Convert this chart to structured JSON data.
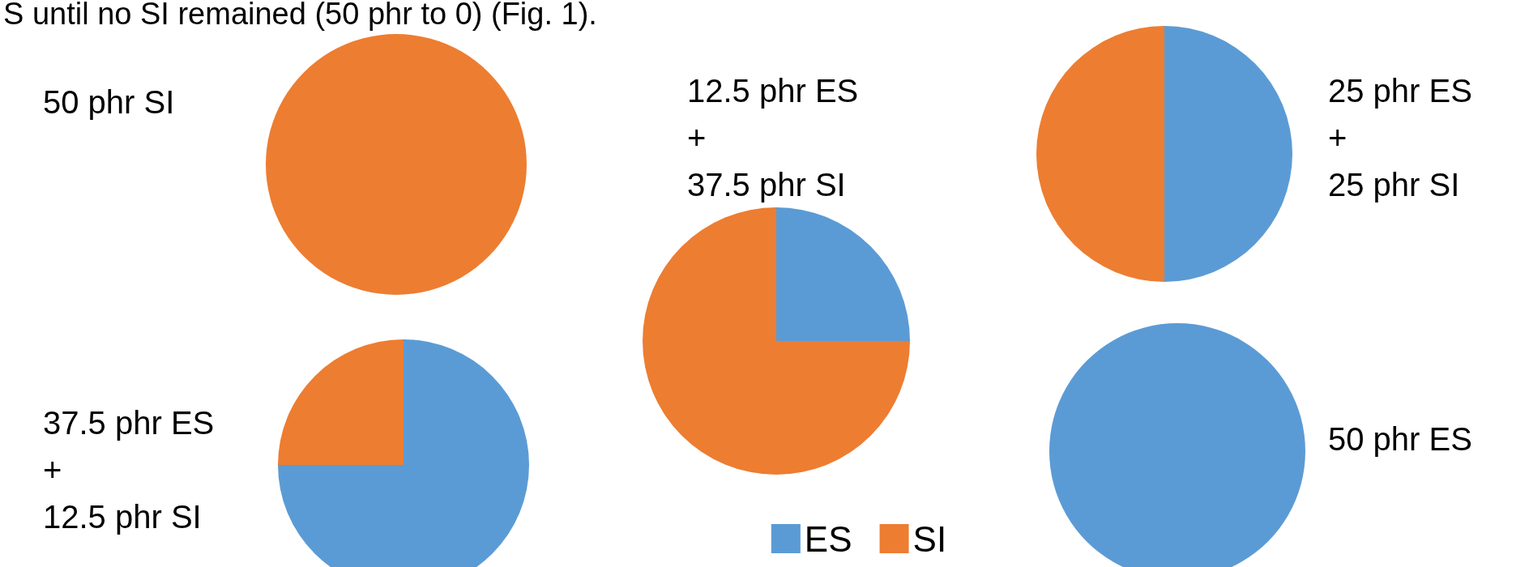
{
  "chart_data": [
    {
      "type": "pie",
      "title": "50 phr SI",
      "categories": [
        null,
        null
      ],
      "values": [
        0,
        100
      ],
      "colors": [
        "#5b9bd5",
        "#ed7d31"
      ],
      "annotations": [
        "S until no SI remained (50 phr to 0) (Fig. 1)."
      ]
    },
    {
      "type": "pie",
      "title": "12.5 phr ES\n+\n37.5 phr SI",
      "categories": [
        "ES",
        "SI"
      ],
      "values": [
        25,
        75
      ],
      "colors": [
        "#5b9bd5",
        "#ed7d31"
      ],
      "legend": "bottom"
    },
    {
      "type": "pie",
      "title": "25 phr ES\n+\n25 phr SI",
      "categories": [
        null,
        null
      ],
      "values": [
        50,
        50
      ],
      "colors": [
        "#5b9bd5",
        "#ed7d31"
      ]
    },
    {
      "type": "pie",
      "title": "37.5 phr ES\n+\n12.5 phr SI",
      "categories": [
        null,
        null
      ],
      "values": [
        75,
        25
      ],
      "colors": [
        "#5b9bd5",
        "#ed7d31"
      ]
    },
    {
      "type": "pie",
      "title": "50 phr ES",
      "categories": [
        null,
        null
      ],
      "values": [
        100,
        0
      ],
      "colors": [
        "#5b9bd5",
        "#ed7d31"
      ]
    }
  ]
}
